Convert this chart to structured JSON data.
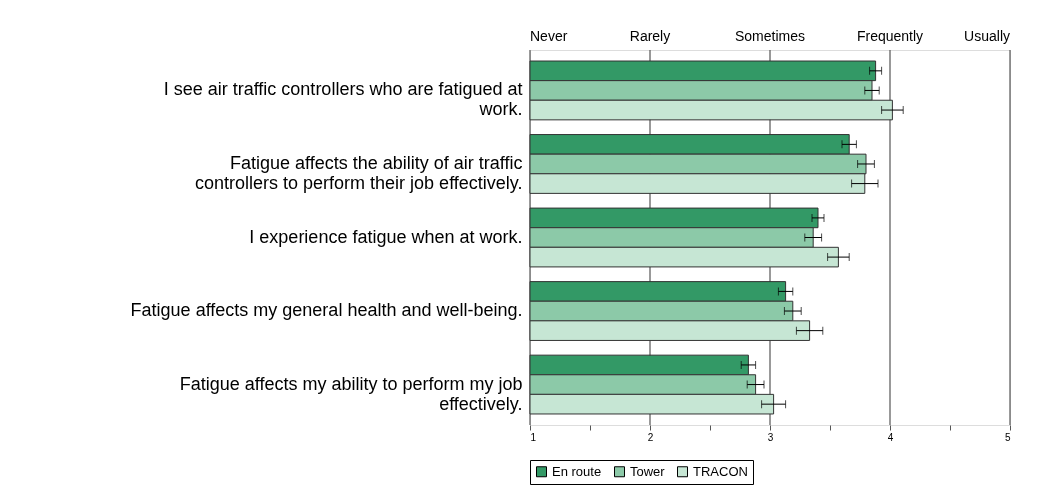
{
  "chart_data": {
    "type": "bar",
    "orientation": "horizontal",
    "categories": [
      "I see air traffic controllers who are fatigued at work.",
      "Fatigue affects the ability of air traffic controllers to perform their job effectively.",
      "I experience fatigue when at work.",
      "Fatigue affects my general health and well-being.",
      "Fatigue affects my ability to perform my job effectively."
    ],
    "series": [
      {
        "name": "En route",
        "color": "#339966",
        "values": [
          3.88,
          3.66,
          3.4,
          3.13,
          2.82
        ],
        "errors": [
          0.05,
          0.06,
          0.05,
          0.06,
          0.06
        ]
      },
      {
        "name": "Tower",
        "color": "#8cc9a8",
        "values": [
          3.85,
          3.8,
          3.36,
          3.19,
          2.88
        ],
        "errors": [
          0.06,
          0.07,
          0.07,
          0.07,
          0.07
        ]
      },
      {
        "name": "TRACON",
        "color": "#c6e6d4",
        "values": [
          4.02,
          3.79,
          3.57,
          3.33,
          3.03
        ],
        "errors": [
          0.09,
          0.11,
          0.09,
          0.11,
          0.1
        ]
      }
    ],
    "xlim": [
      1,
      5
    ],
    "xticks": [
      1,
      {
        "value": 1.5,
        "label": null
      },
      2,
      {
        "value": 2.5,
        "label": null
      },
      3,
      {
        "value": 3.5,
        "label": null
      },
      4,
      {
        "value": 4.5,
        "label": null
      },
      5
    ],
    "annotations": [
      "Never",
      "Rarely",
      "Sometimes",
      "Frequently",
      "Usually"
    ],
    "grid": "x",
    "legend": "bottom"
  }
}
